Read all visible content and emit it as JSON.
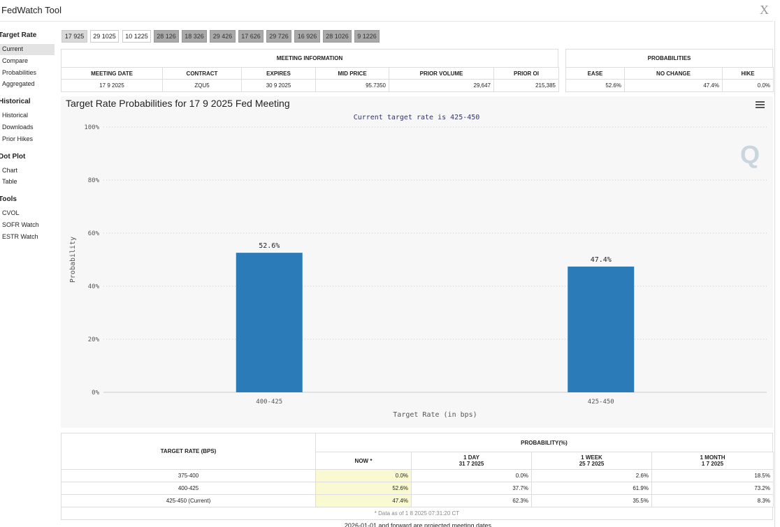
{
  "header": {
    "title": "FedWatch Tool"
  },
  "sidebar": [
    {
      "heading": "Target Rate",
      "items": [
        "Current",
        "Compare",
        "Probabilities",
        "Aggregated"
      ]
    },
    {
      "heading": "Historical",
      "items": [
        "Historical",
        "Downloads",
        "Prior Hikes"
      ]
    },
    {
      "heading": "Dot Plot",
      "items": [
        "Chart",
        "Table"
      ]
    },
    {
      "heading": "Tools",
      "items": [
        "CVOL",
        "SOFR Watch",
        "ESTR Watch"
      ]
    }
  ],
  "tabs": [
    "17 925",
    "29 1025",
    "10 1225",
    "28 126",
    "18 326",
    "29 426",
    "17 626",
    "29 726",
    "16 926",
    "28 1026",
    "9 1226"
  ],
  "meeting_info": {
    "title": "MEETING INFORMATION",
    "columns": [
      "MEETING DATE",
      "CONTRACT",
      "EXPIRES",
      "MID PRICE",
      "PRIOR VOLUME",
      "PRIOR OI"
    ],
    "row": [
      "17 9 2025",
      "ZQU5",
      "30 9 2025",
      "95.7350",
      "29,647",
      "215,385"
    ]
  },
  "probabilities": {
    "title": "PROBABILITIES",
    "columns": [
      "EASE",
      "NO CHANGE",
      "HIKE"
    ],
    "row": [
      "52.6%",
      "47.4%",
      "0.0%"
    ]
  },
  "chart_data": {
    "type": "bar",
    "title": "Target Rate Probabilities for 17 9 2025 Fed Meeting",
    "subtitle": "Current target rate is 425-450",
    "x_label": "Target Rate (in bps)",
    "y_label": "Probability",
    "categories": [
      "400-425",
      "425-450"
    ],
    "values": [
      52.6,
      47.4
    ],
    "value_labels": [
      "52.6%",
      "47.4%"
    ],
    "color": "#2b7bb9",
    "ylim": [
      0,
      100
    ],
    "yticks": [
      {
        "value": 0,
        "label": "0%"
      },
      {
        "value": 20,
        "label": "20%"
      },
      {
        "value": 40,
        "label": "40%"
      },
      {
        "value": 60,
        "label": "60%"
      },
      {
        "value": 80,
        "label": "80%"
      },
      {
        "value": 100,
        "label": "100%"
      }
    ],
    "grid": true
  },
  "rate_table": {
    "target_header": "TARGET RATE (BPS)",
    "group_header": "PROBABILITY(%)",
    "periods": [
      {
        "label": "NOW *"
      },
      {
        "label": "1 DAY",
        "date": "31 7 2025"
      },
      {
        "label": "1 WEEK",
        "date": "25 7 2025"
      },
      {
        "label": "1 MONTH",
        "date": "1 7 2025"
      }
    ],
    "rows": [
      [
        "375-400",
        "0.0%",
        "0.0%",
        "2.6%",
        "18.5%"
      ],
      [
        "400-425",
        "52.6%",
        "37.7%",
        "61.9%",
        "73.2%"
      ],
      [
        "425-450 (Current)",
        "47.4%",
        "62.3%",
        "35.5%",
        "8.3%"
      ]
    ],
    "note": "* Data as of 1 8 2025 07:31:20 CT",
    "footer": "2026-01-01 and forward are projected meeting dates"
  }
}
